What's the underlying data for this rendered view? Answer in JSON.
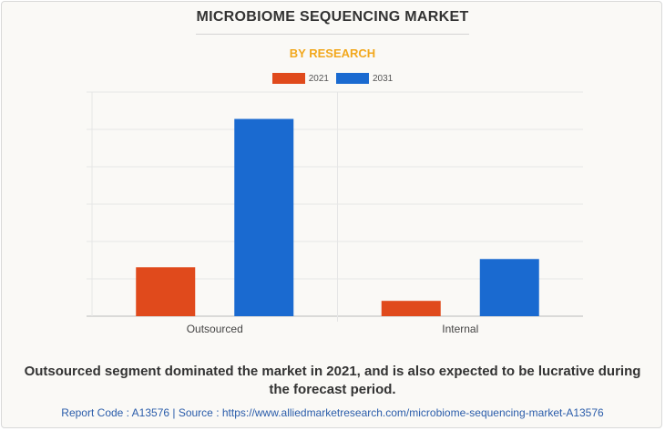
{
  "chart_data": {
    "type": "bar",
    "title": "MICROBIOME SEQUENCING MARKET",
    "subtitle": "BY RESEARCH",
    "categories": [
      "Outsourced",
      "Internal"
    ],
    "series": [
      {
        "name": "2021",
        "color": "#e04a1c",
        "values": [
          131,
          41
        ]
      },
      {
        "name": "2031",
        "color": "#1a6ad0",
        "values": [
          528,
          153
        ]
      }
    ],
    "ylim": [
      0,
      600
    ],
    "grid": true,
    "legend": "top-center"
  },
  "colors": {
    "subtitle": "#f2a81d",
    "text": "#333333",
    "link": "#2a5caa"
  },
  "caption": "Outsourced segment dominated the market in 2021, and is also expected to be lucrative during the forecast period.",
  "footer": "Report Code : A13576  |  Source : https://www.alliedmarketresearch.com/microbiome-sequencing-market-A13576"
}
